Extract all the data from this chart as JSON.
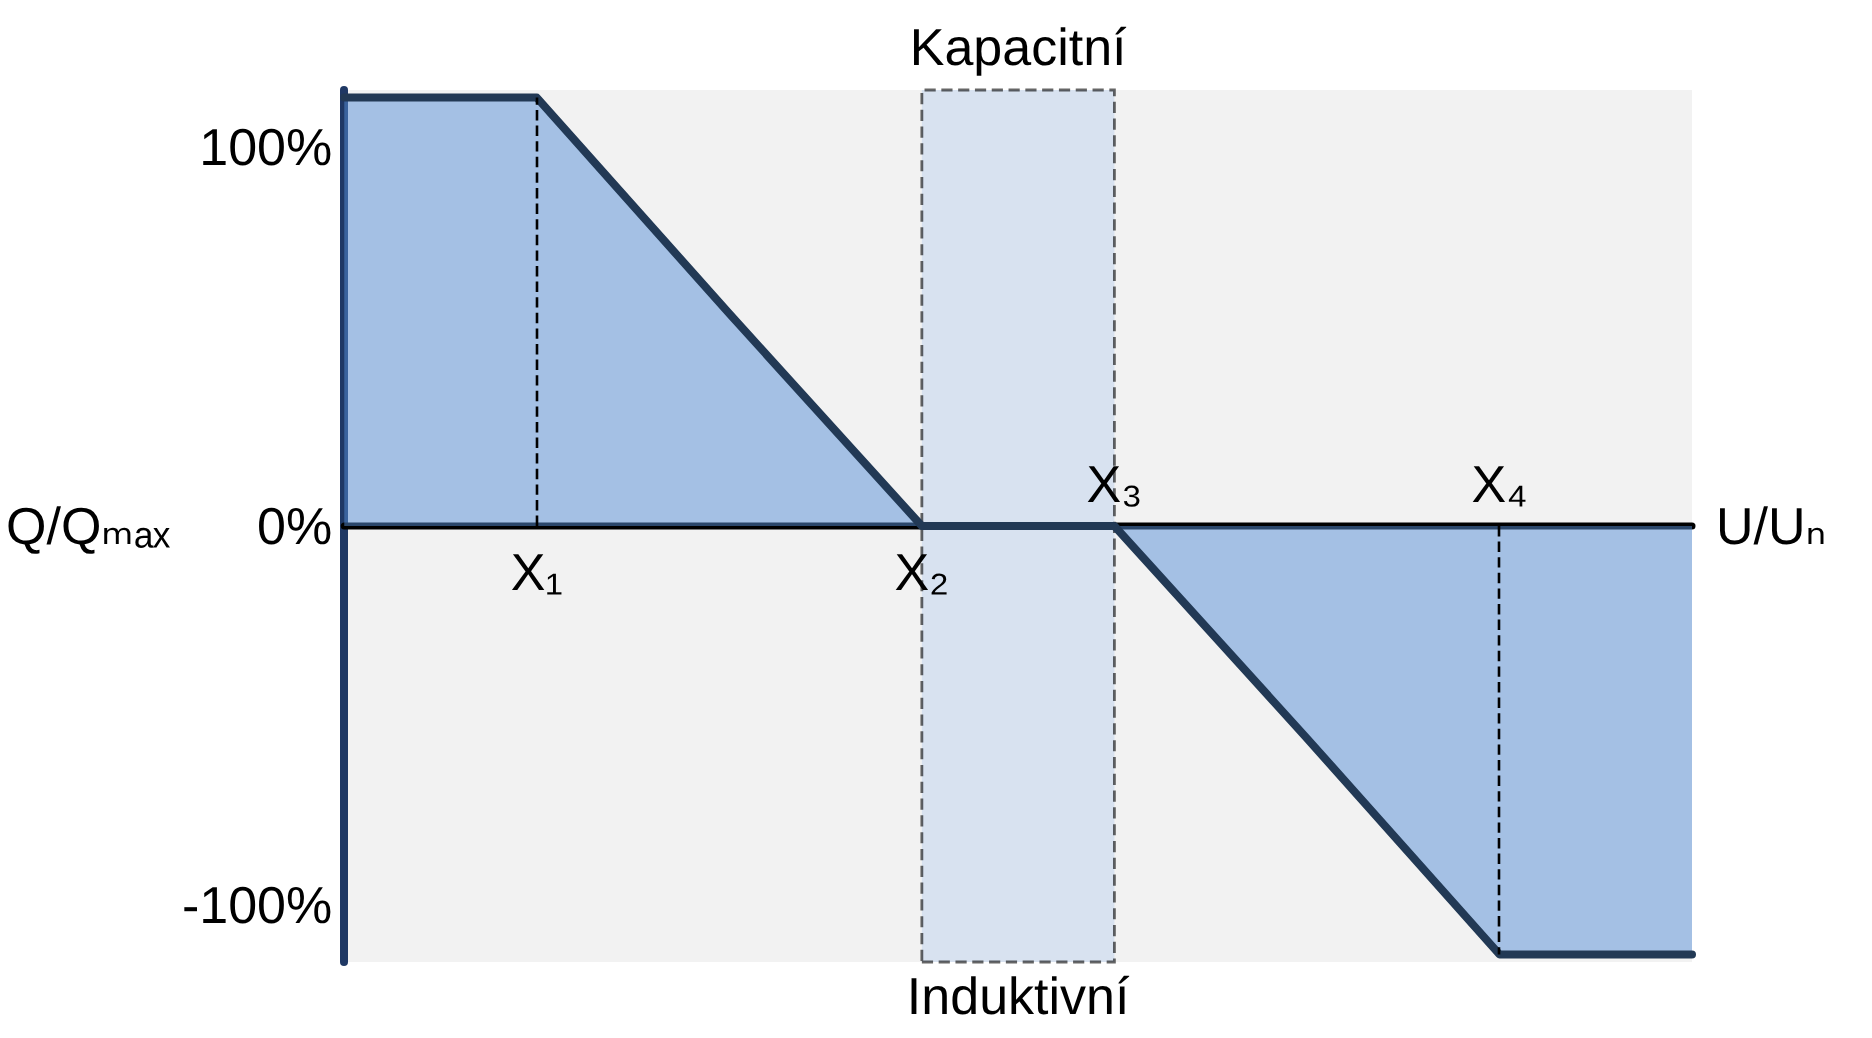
{
  "chart_data": {
    "type": "area",
    "categories": [
      null,
      "X₁",
      null,
      "X₂",
      "X₃",
      null,
      "X₄",
      null
    ],
    "series": [
      {
        "color": "#558ed5",
        "values": [
          113,
          113,
          56,
          0,
          0,
          -56,
          -113,
          -113
        ]
      }
    ],
    "xlabel": "U/Uₙ",
    "ylabel": "Q/Qₘₐₓ",
    "ylim": [
      -115,
      115
    ],
    "yticks": [
      {
        "value": -100,
        "label": "-100%"
      },
      {
        "value": 0,
        "label": "0%"
      },
      {
        "value": 100,
        "label": "100%"
      }
    ],
    "bands": [
      {
        "axis": "x",
        "from": "X₂",
        "to": "X₃",
        "label": "Kapacitní",
        "color": "#c6d7ef"
      }
    ],
    "annotations": [
      "Induktivní"
    ],
    "ref_lines": [
      {
        "axis": "x",
        "value": "X₁",
        "line_style": "dashed",
        "color": "#000000"
      },
      {
        "axis": "x",
        "value": "X₄",
        "line_style": "dashed",
        "color": "#000000"
      }
    ],
    "marker": "none",
    "line_style": "solid",
    "grid": false
  }
}
